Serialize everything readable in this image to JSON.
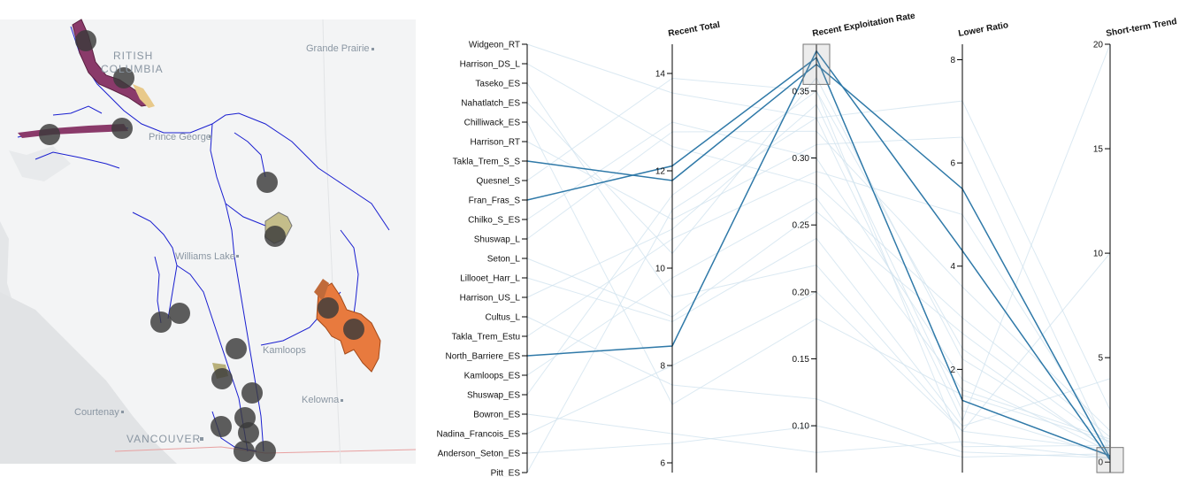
{
  "map": {
    "labels": {
      "british_columbia_1": "RITISH",
      "british_columbia_2": "COLUMBIA",
      "grande_prairie": "Grande Prairie",
      "prince_george": "Prince George",
      "williams_lake": "Williams Lake",
      "kamloops": "Kamloops",
      "kelowna": "Kelowna",
      "courtenay": "Courtenay",
      "vancouver": "VANCOUVER"
    },
    "colors": {
      "water": "#e6e8ea",
      "land": "#f4f5f6",
      "river": "#1a1fd0",
      "marker": "#3a3a3a",
      "highlight": "#e87a3e",
      "habitat": "#e8c98a"
    }
  },
  "chart_data": {
    "type": "parallel_coordinates",
    "axes": [
      {
        "key": "stock",
        "label": "",
        "kind": "categorical",
        "categories": [
          "Widgeon_RT",
          "Harrison_DS_L",
          "Taseko_ES",
          "Nahatlatch_ES",
          "Chilliwack_ES",
          "Harrison_RT",
          "Takla_Trem_S_S",
          "Quesnel_S",
          "Fran_Fras_S",
          "Chilko_S_ES",
          "Shuswap_L",
          "Seton_L",
          "Lillooet_Harr_L",
          "Harrison_US_L",
          "Cultus_L",
          "Takla_Trem_Estu",
          "North_Barriere_ES",
          "Kamloops_ES",
          "Shuswap_ES",
          "Bowron_ES",
          "Nadina_Francois_ES",
          "Anderson_Seton_ES",
          "Pitt_ES"
        ]
      },
      {
        "key": "recent_total",
        "label": "Recent Total",
        "kind": "linear",
        "domain": [
          5.8,
          14.6
        ],
        "ticks": [
          6,
          8,
          10,
          12,
          14
        ]
      },
      {
        "key": "exploitation",
        "label": "Recent Exploitation Rate",
        "kind": "linear",
        "domain": [
          0.065,
          0.385
        ],
        "ticks": [
          0.1,
          0.15,
          0.2,
          0.25,
          0.3,
          0.35
        ],
        "tick_labels": [
          "0.10",
          "0.15",
          "0.20",
          "0.25",
          "0.30",
          "0.35"
        ]
      },
      {
        "key": "lower_ratio",
        "label": "Lower Ratio",
        "kind": "linear",
        "domain": [
          0,
          8.3
        ],
        "ticks": [
          2,
          4,
          6,
          8
        ]
      },
      {
        "key": "trend",
        "label": "Short-term Trend",
        "kind": "linear",
        "domain": [
          -0.5,
          20
        ],
        "ticks": [
          0,
          5,
          10,
          15,
          20
        ]
      }
    ],
    "brushes": [
      {
        "axis": "exploitation",
        "range": [
          0.355,
          0.385
        ]
      },
      {
        "axis": "trend",
        "range": [
          -0.5,
          0.7
        ]
      }
    ],
    "highlighted": [
      {
        "stock": "Takla_Trem_S_S",
        "recent_total": 11.8,
        "exploitation": 0.37,
        "lower_ratio": 5.5,
        "trend": 0.2
      },
      {
        "stock": "Fran_Fras_S",
        "recent_total": 12.1,
        "exploitation": 0.375,
        "lower_ratio": 1.4,
        "trend": 0.3
      },
      {
        "stock": "North_Barriere_ES",
        "recent_total": 8.4,
        "exploitation": 0.38,
        "lower_ratio": 4.3,
        "trend": 0.1
      }
    ],
    "background": [
      {
        "stock": "Widgeon_RT",
        "recent_total": 13.6,
        "exploitation": 0.33,
        "lower_ratio": 7.2,
        "trend": 2.5
      },
      {
        "stock": "Harrison_DS_L",
        "recent_total": 12.5,
        "exploitation": 0.28,
        "lower_ratio": 3.0,
        "trend": 1.2
      },
      {
        "stock": "Taseko_ES",
        "recent_total": 9.4,
        "exploitation": 0.22,
        "lower_ratio": 0.8,
        "trend": 10.0
      },
      {
        "stock": "Nahatlatch_ES",
        "recent_total": 10.3,
        "exploitation": 0.36,
        "lower_ratio": 2.2,
        "trend": 0.6
      },
      {
        "stock": "Chilliwack_ES",
        "recent_total": 7.2,
        "exploitation": 0.18,
        "lower_ratio": 1.5,
        "trend": 1.0
      },
      {
        "stock": "Harrison_RT",
        "recent_total": 11.0,
        "exploitation": 0.31,
        "lower_ratio": 6.5,
        "trend": 0.4
      },
      {
        "stock": "Quesnel_S",
        "recent_total": 13.9,
        "exploitation": 0.35,
        "lower_ratio": 0.5,
        "trend": 0.8
      },
      {
        "stock": "Chilko_S_ES",
        "recent_total": 13.0,
        "exploitation": 0.3,
        "lower_ratio": 1.8,
        "trend": 0.5
      },
      {
        "stock": "Shuswap_L",
        "recent_total": 12.8,
        "exploitation": 0.32,
        "lower_ratio": 3.6,
        "trend": 1.5
      },
      {
        "stock": "Seton_L",
        "recent_total": 9.0,
        "exploitation": 0.26,
        "lower_ratio": 2.7,
        "trend": 0.9
      },
      {
        "stock": "Lillooet_Harr_L",
        "recent_total": 8.9,
        "exploitation": 0.24,
        "lower_ratio": 0.9,
        "trend": 4.0
      },
      {
        "stock": "Harrison_US_L",
        "recent_total": 10.8,
        "exploitation": 0.34,
        "lower_ratio": 1.2,
        "trend": 0.3
      },
      {
        "stock": "Cultus_L",
        "recent_total": 7.6,
        "exploitation": 0.12,
        "lower_ratio": 0.4,
        "trend": 0.2
      },
      {
        "stock": "Takla_Trem_Estu",
        "recent_total": 10.6,
        "exploitation": 0.29,
        "lower_ratio": 5.0,
        "trend": 0.7
      },
      {
        "stock": "Kamloops_ES",
        "recent_total": 9.8,
        "exploitation": 0.27,
        "lower_ratio": 1.6,
        "trend": 1.1
      },
      {
        "stock": "Shuswap_ES",
        "recent_total": 11.5,
        "exploitation": 0.35,
        "lower_ratio": 2.4,
        "trend": 0.5
      },
      {
        "stock": "Bowron_ES",
        "recent_total": 6.6,
        "exploitation": 0.08,
        "lower_ratio": 0.6,
        "trend": 0.2
      },
      {
        "stock": "Nadina_Francois_ES",
        "recent_total": 8.0,
        "exploitation": 0.2,
        "lower_ratio": 0.8,
        "trend": 0.6
      },
      {
        "stock": "Anderson_Seton_ES",
        "recent_total": 6.4,
        "exploitation": 0.1,
        "lower_ratio": 0.3,
        "trend": 0.4
      },
      {
        "stock": "Pitt_ES",
        "recent_total": 11.2,
        "exploitation": 0.33,
        "lower_ratio": 1.0,
        "trend": 20.0
      }
    ]
  }
}
